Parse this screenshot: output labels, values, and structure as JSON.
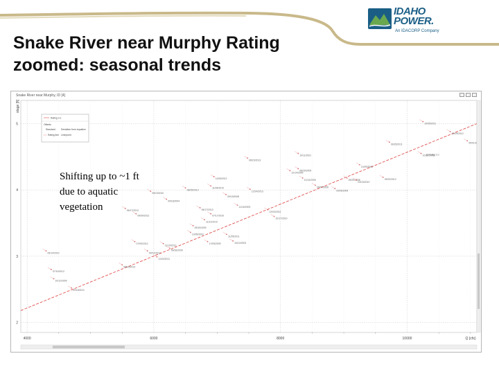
{
  "slide": {
    "title_line1": "Snake River near Murphy Rating",
    "title_line2": "zoomed: seasonal trends",
    "annotation_line1": "Shifting up to ~1 ft",
    "annotation_line2": "due to aquatic",
    "annotation_line3": "vegetation"
  },
  "logo": {
    "name_line1": "IDAHO",
    "name_line2": "POWER.",
    "tagline": "An IDACORP Company",
    "colors": {
      "blue": "#1a5e86",
      "green": "#6aa84f"
    }
  },
  "window": {
    "title": "Snake River near Murphy, ID [4]"
  },
  "colors": {
    "accent": "#c9b98a",
    "rating_line": "#e05050",
    "points": "#e8a0a0"
  },
  "chart_data": {
    "type": "scatter",
    "xlabel": "Q [cfs]",
    "ylabel": "stage [ft]",
    "xlim": [
      3900,
      11100
    ],
    "ylim": [
      1.85,
      5.35
    ],
    "x_ticks": [
      4000,
      6000,
      8000,
      10000
    ],
    "y_ticks": [
      2,
      3,
      4,
      5
    ],
    "grid": true,
    "legend_placement": "top-left",
    "legend": {
      "rating_line_label": "Rating 3.1",
      "header_col1": "Offsets",
      "header_col2": "Standard",
      "header_col3": "Deviation from equation",
      "row2_col1": "Rating line",
      "row2_col2": "Line/point"
    },
    "rating_curve": {
      "name": "Q:Rating 3.1",
      "x": [
        3900,
        11100
      ],
      "y": [
        2.18,
        5.0
      ]
    },
    "points": [
      {
        "x": 10250,
        "y": 5.03,
        "label": "10/05/2011"
      },
      {
        "x": 10680,
        "y": 4.88,
        "label": "10/29/2010"
      },
      {
        "x": 10950,
        "y": 4.74,
        "label": "09/01/2001"
      },
      {
        "x": 9720,
        "y": 4.72,
        "label": "09/25/2011"
      },
      {
        "x": 10220,
        "y": 4.55,
        "label": "10/30/2006"
      },
      {
        "x": 9250,
        "y": 4.38,
        "label": "10/29/2003"
      },
      {
        "x": 9620,
        "y": 4.19,
        "label": "09/22/2012"
      },
      {
        "x": 8280,
        "y": 4.55,
        "label": "10/11/2001"
      },
      {
        "x": 8280,
        "y": 4.32,
        "label": "08/29/2009"
      },
      {
        "x": 9050,
        "y": 4.18,
        "label": "09/29/2008"
      },
      {
        "x": 8150,
        "y": 4.29,
        "label": "12/14/2005"
      },
      {
        "x": 7480,
        "y": 4.48,
        "label": "08/15/2013"
      },
      {
        "x": 7520,
        "y": 4.01,
        "label": "12/14/2013"
      },
      {
        "x": 6950,
        "y": 4.2,
        "label": "11/05/2012"
      },
      {
        "x": 6900,
        "y": 4.06,
        "label": "11/04/2010"
      },
      {
        "x": 6500,
        "y": 4.03,
        "label": "08/25/2013"
      },
      {
        "x": 7140,
        "y": 3.93,
        "label": "09/15/2008"
      },
      {
        "x": 8350,
        "y": 4.18,
        "label": "12/14/2005"
      },
      {
        "x": 8550,
        "y": 4.07,
        "label": "09/07/2008"
      },
      {
        "x": 8860,
        "y": 4.02,
        "label": "03/06/2009"
      },
      {
        "x": 9200,
        "y": 4.15,
        "label": "03/23/2010"
      },
      {
        "x": 5950,
        "y": 3.98,
        "label": "09/23/2010"
      },
      {
        "x": 6200,
        "y": 3.86,
        "label": "09/18/2004"
      },
      {
        "x": 7320,
        "y": 3.77,
        "label": "11/16/2003"
      },
      {
        "x": 7800,
        "y": 3.7,
        "label": "12/03/2012"
      },
      {
        "x": 7900,
        "y": 3.6,
        "label": "10/17/2010"
      },
      {
        "x": 6730,
        "y": 3.73,
        "label": "06/17/2013"
      },
      {
        "x": 6900,
        "y": 3.64,
        "label": "07/17/2010"
      },
      {
        "x": 6800,
        "y": 3.55,
        "label": "11/21/2010"
      },
      {
        "x": 6620,
        "y": 3.46,
        "label": "09/19/2009"
      },
      {
        "x": 6580,
        "y": 3.36,
        "label": "10/05/2002"
      },
      {
        "x": 7150,
        "y": 3.33,
        "label": "11/25/2011"
      },
      {
        "x": 7250,
        "y": 3.23,
        "label": "10/10/2003"
      },
      {
        "x": 6850,
        "y": 3.22,
        "label": "17/05/2009"
      },
      {
        "x": 5550,
        "y": 3.72,
        "label": "06/17/2013"
      },
      {
        "x": 5720,
        "y": 3.64,
        "label": "09/09/2012"
      },
      {
        "x": 6150,
        "y": 3.19,
        "label": "11/10/2013"
      },
      {
        "x": 6250,
        "y": 3.12,
        "label": "09/26/2009"
      },
      {
        "x": 5700,
        "y": 3.22,
        "label": "07/09/2012"
      },
      {
        "x": 5900,
        "y": 3.08,
        "label": "09/12/2012"
      },
      {
        "x": 6050,
        "y": 2.99,
        "label": "11/02/2011"
      },
      {
        "x": 5500,
        "y": 2.87,
        "label": "09/15/2013"
      },
      {
        "x": 4300,
        "y": 3.08,
        "label": "05/14/2010"
      },
      {
        "x": 4380,
        "y": 2.8,
        "label": "07/10/2012"
      },
      {
        "x": 4420,
        "y": 2.66,
        "label": "10/12/2009"
      },
      {
        "x": 4700,
        "y": 2.52,
        "label": "09/18/2011"
      }
    ]
  }
}
